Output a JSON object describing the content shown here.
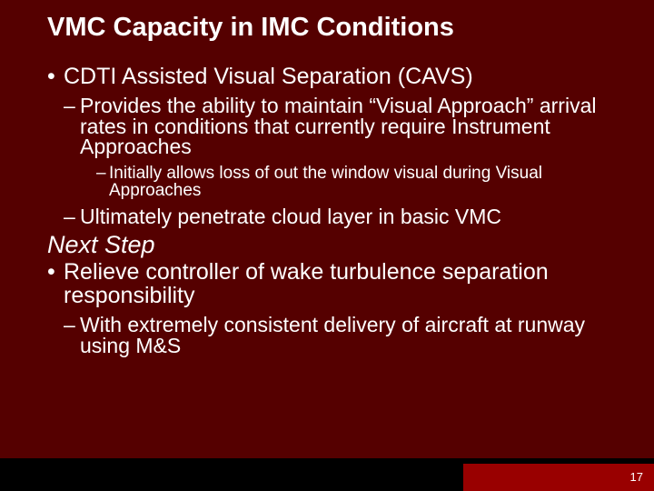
{
  "title": "VMC Capacity in IMC Conditions",
  "bullets": {
    "l1_1": "CDTI Assisted Visual Separation (CAVS)",
    "l2_1": "Provides the ability to maintain “Visual Approach” arrival rates in conditions that currently require Instrument Approaches",
    "l3_1": "Initially allows loss of out the window visual during Visual Approaches",
    "l2_2": "Ultimately penetrate cloud layer in basic VMC",
    "next_step": "Next Step",
    "l1_2": "Relieve controller of wake turbulence separation responsibility",
    "l2_3": "With extremely consistent delivery of aircraft at runway using M&S"
  },
  "page_number": "17",
  "colors": {
    "slide_bg": "#550000",
    "footer_bg": "#000000",
    "red_strip": "#990000",
    "text": "#ffffff"
  },
  "fonts": {
    "title_size_pt": 29,
    "l1_size_pt": 25,
    "l2_size_pt": 23,
    "l3_size_pt": 19,
    "next_step_size_pt": 27,
    "page_num_size_pt": 13
  }
}
